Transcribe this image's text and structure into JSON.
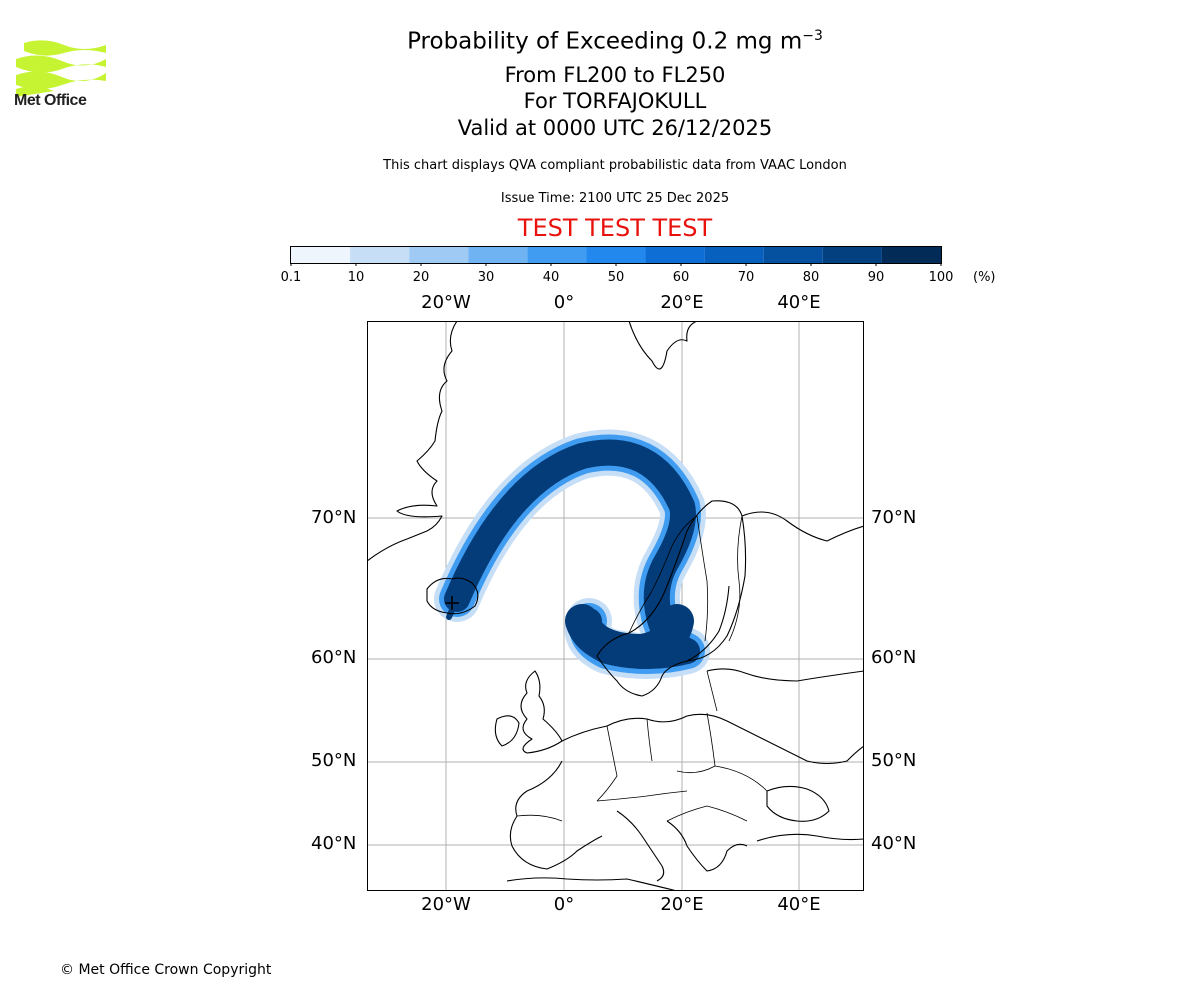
{
  "header": {
    "title_prefix": "Probability of Exceeding 0.2 mg m",
    "title_exponent": "−3",
    "level_range": "From FL200 to FL250",
    "volcano": "For TORFAJOKULL",
    "valid_time": "Valid at 0000 UTC 26/12/2025",
    "description": "This chart displays QVA compliant probabilistic data from VAAC London",
    "issue_time": "Issue Time: 2100 UTC 25 Dec 2025",
    "test_banner": "TEST TEST TEST"
  },
  "logo": {
    "text": "Met Office",
    "color": "#c6f432"
  },
  "colorbar": {
    "ticks": [
      "0.1",
      "10",
      "20",
      "30",
      "40",
      "50",
      "60",
      "70",
      "80",
      "90",
      "100"
    ],
    "unit": "(%)",
    "colors": [
      "#eef5fd",
      "#c6def6",
      "#9fcaf4",
      "#6fb3f2",
      "#3f9cf0",
      "#2288ee",
      "#0e6ed6",
      "#075fbe",
      "#05509f",
      "#034080",
      "#022b57"
    ]
  },
  "map": {
    "lon_labels": [
      "20°W",
      "0°",
      "20°E",
      "40°E"
    ],
    "lat_labels": [
      "70°N",
      "60°N",
      "50°N",
      "40°N"
    ],
    "source_marker": "volcano-cross",
    "plume_color": "#033c79"
  },
  "footer": {
    "copyright": "© Met Office Crown Copyright"
  }
}
